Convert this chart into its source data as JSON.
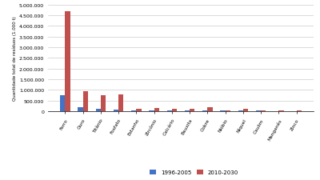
{
  "categories": [
    "Ferro",
    "Ouro",
    "Titânio",
    "Fosfato",
    "Estanho",
    "Zircônio",
    "Calcário",
    "Bauxita",
    "Cobre",
    "Nióbio",
    "Níquel",
    "Caulim",
    "Manganês",
    "Zinco"
  ],
  "values_1996_2005": [
    750000,
    200000,
    130000,
    80000,
    50000,
    60000,
    55000,
    50000,
    40000,
    35000,
    30000,
    25000,
    20000,
    18000
  ],
  "values_2010_2030": [
    4700000,
    950000,
    750000,
    800000,
    130000,
    150000,
    120000,
    130000,
    200000,
    40000,
    120000,
    35000,
    30000,
    28000
  ],
  "color_1996": "#4472C4",
  "color_2010": "#C0504D",
  "ylabel": "Quantidade total de resíduos (1.000 t)",
  "ylim": [
    0,
    5000000
  ],
  "yticks": [
    0,
    500000,
    1000000,
    1500000,
    2000000,
    2500000,
    3000000,
    3500000,
    4000000,
    4500000,
    5000000
  ],
  "legend_1996": "1996-2005",
  "legend_2010": "2010-2030",
  "bg_color": "#FFFFFF",
  "grid_color": "#CCCCCC",
  "fig_width": 4.0,
  "fig_height": 2.26,
  "dpi": 100
}
